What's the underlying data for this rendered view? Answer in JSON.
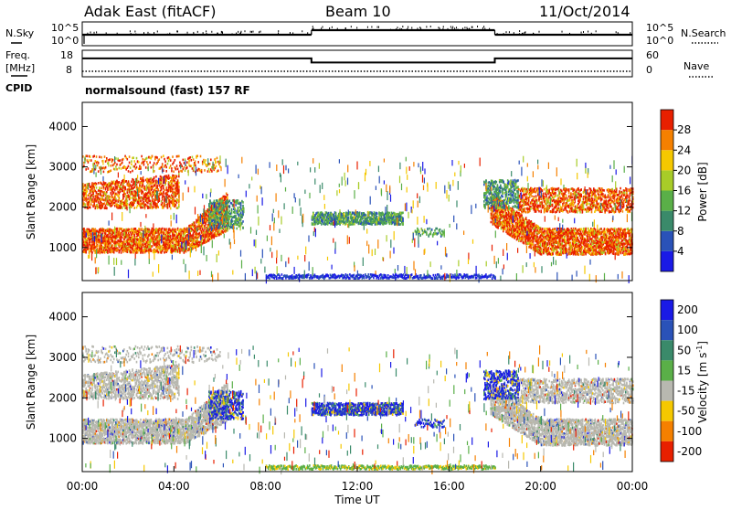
{
  "header": {
    "station": "Adak East (fitACF)",
    "beam": "Beam 10",
    "date": "11/Oct/2014"
  },
  "chart_data": [
    {
      "type": "line",
      "panel": "noise",
      "left_label": "N.Sky",
      "right_label": "N.Search",
      "y_ticks_left": [
        "10^5",
        "10^0"
      ],
      "y_ticks_right": [
        "10^5",
        "10^0"
      ],
      "segments": [
        {
          "x_start": "00:00",
          "x_end": "10:00",
          "level": "low"
        },
        {
          "x_start": "10:00",
          "x_end": "18:00",
          "level": "higher"
        },
        {
          "x_start": "18:00",
          "x_end": "24:00",
          "level": "low"
        }
      ]
    },
    {
      "type": "line",
      "panel": "frequency-nave",
      "left_label_line1": "Freq.",
      "left_label_line2": "[MHz]",
      "cpid_label": "CPID",
      "right_label": "Nave",
      "y_ticks_left": [
        "18",
        "8"
      ],
      "y_ticks_right": [
        "60",
        "0"
      ],
      "cpid_text": "normalsound (fast) 157 RF",
      "series": [
        {
          "name": "Freq.",
          "x": [
            "00:00",
            "10:00",
            "10:00",
            "18:00",
            "18:00",
            "24:00"
          ],
          "values": [
            13.5,
            13.5,
            11.3,
            11.3,
            13.5,
            13.5
          ]
        },
        {
          "name": "Nave",
          "x": [
            "00:00",
            "24:00"
          ],
          "values": [
            2,
            2
          ]
        }
      ]
    },
    {
      "type": "heatmap",
      "panel": "power",
      "ylabel": "Slant Range [km]",
      "y_ticks": [
        "1000",
        "2000",
        "3000",
        "4000"
      ],
      "ylim": [
        180,
        4600
      ],
      "colorbar_label": "Power [dB]",
      "colorbar_ticks": [
        "4",
        "8",
        "12",
        "16",
        "20",
        "24",
        "28"
      ],
      "colors": [
        "#1a1ae6",
        "#2a52b8",
        "#3a8a6a",
        "#5aaf48",
        "#a8cc28",
        "#f5c800",
        "#f58000",
        "#e82000"
      ],
      "regions": [
        {
          "x": [
            "00:00",
            "06:30"
          ],
          "range_km": [
            900,
            3300
          ],
          "value": "high (20-28 dB)"
        },
        {
          "x": [
            "10:00",
            "14:00"
          ],
          "range_km": [
            1600,
            1900
          ],
          "value": "medium (8-16 dB)"
        },
        {
          "x": [
            "17:45",
            "24:00"
          ],
          "range_km": [
            850,
            3000
          ],
          "value": "high (20-28 dB)"
        }
      ]
    },
    {
      "type": "heatmap",
      "panel": "velocity",
      "ylabel": "Slant Range [km]",
      "xlabel": "Time UT",
      "x_ticks": [
        "00:00",
        "04:00",
        "08:00",
        "12:00",
        "16:00",
        "20:00",
        "00:00"
      ],
      "y_ticks": [
        "1000",
        "2000",
        "3000",
        "4000"
      ],
      "ylim": [
        180,
        4600
      ],
      "colorbar_label_main": "Velocity [m s",
      "colorbar_label_sup": "-1",
      "colorbar_label_end": "]",
      "colorbar_ticks": [
        "200",
        "100",
        "50",
        "15",
        "-15",
        "-50",
        "-100",
        "-200"
      ],
      "colors": [
        "#1a1ae6",
        "#2a52b8",
        "#3a8a6a",
        "#5aaf48",
        "#b8b8b0",
        "#f5c800",
        "#f58000",
        "#e82000"
      ],
      "regions": [
        {
          "x": [
            "00:00",
            "06:30"
          ],
          "range_km": [
            900,
            3300
          ],
          "value": "near zero (grey)"
        },
        {
          "x": [
            "06:00",
            "07:00"
          ],
          "range_km": [
            1500,
            2100
          ],
          "value": "positive (~150 m/s)"
        },
        {
          "x": [
            "10:00",
            "14:00"
          ],
          "range_km": [
            1600,
            1900
          ],
          "value": "positive (~100-200 m/s)"
        },
        {
          "x": [
            "17:45",
            "24:00"
          ],
          "range_km": [
            850,
            3000
          ],
          "value": "near zero (grey)"
        }
      ]
    }
  ]
}
